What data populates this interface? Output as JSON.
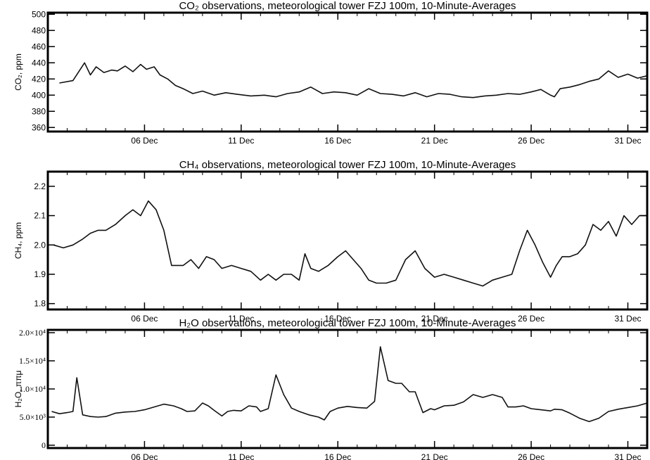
{
  "chart_data": [
    {
      "type": "line",
      "title": "CO₂ observations, meteorological tower FZJ 100m, 10-Minute-Averages",
      "ylabel": "CO₂, ppm",
      "ylim": [
        355,
        502
      ],
      "yticks": [
        "360",
        "380",
        "400",
        "420",
        "440",
        "460",
        "480",
        "500"
      ],
      "yticks_values": [
        360,
        380,
        400,
        420,
        440,
        460,
        480,
        500
      ],
      "xlim": [
        1,
        32
      ],
      "xticks": [
        "06 Dec",
        "11 Dec",
        "16 Dec",
        "21 Dec",
        "26 Dec",
        "31 Dec"
      ],
      "xticks_values": [
        6,
        11,
        16,
        21,
        26,
        31
      ],
      "series": [
        {
          "x": [
            1.6,
            2.3,
            2.9,
            3.2,
            3.5,
            3.9,
            4.3,
            4.6,
            5.0,
            5.4,
            5.8,
            6.1,
            6.5,
            6.8,
            7.2,
            7.6,
            8.0,
            8.5,
            9.0,
            9.6,
            10.2,
            10.8,
            11.5,
            12.2,
            12.8,
            13.4,
            14.0,
            14.6,
            15.2,
            15.8,
            16.4,
            17.0,
            17.6,
            18.2,
            18.8,
            19.4,
            20.0,
            20.6,
            21.2,
            21.8,
            22.4,
            23.0,
            23.6,
            24.2,
            24.8,
            25.4,
            26.0,
            26.5,
            27.0,
            27.2,
            27.5,
            28.0,
            28.5,
            29.0,
            29.5,
            30.0,
            30.5,
            31.0,
            31.5,
            32.0
          ],
          "y": [
            415,
            418,
            440,
            425,
            435,
            428,
            431,
            430,
            436,
            429,
            438,
            432,
            435,
            425,
            420,
            412,
            408,
            402,
            405,
            400,
            403,
            401,
            399,
            400,
            398,
            402,
            404,
            410,
            402,
            404,
            403,
            400,
            408,
            402,
            401,
            399,
            403,
            398,
            402,
            401,
            398,
            397,
            399,
            400,
            402,
            401,
            404,
            407,
            400,
            398,
            408,
            410,
            413,
            417,
            420,
            430,
            422,
            426,
            421,
            424
          ]
        }
      ]
    },
    {
      "type": "line",
      "title": "CH₄ observations, meteorological tower FZJ 100m, 10-Minute-Averages",
      "ylabel": "CH₄, ppm",
      "ylim": [
        1.78,
        2.25
      ],
      "yticks": [
        "1.8",
        "1.9",
        "2.0",
        "2.1",
        "2.2"
      ],
      "yticks_values": [
        1.8,
        1.9,
        2.0,
        2.1,
        2.2
      ],
      "xlim": [
        1,
        32
      ],
      "xticks": [
        "06 Dec",
        "11 Dec",
        "16 Dec",
        "21 Dec",
        "26 Dec",
        "31 Dec"
      ],
      "xticks_values": [
        6,
        11,
        16,
        21,
        26,
        31
      ],
      "series": [
        {
          "x": [
            1.3,
            1.8,
            2.3,
            2.8,
            3.2,
            3.6,
            4.0,
            4.5,
            5.0,
            5.4,
            5.8,
            6.2,
            6.6,
            7.0,
            7.4,
            7.7,
            8.0,
            8.4,
            8.8,
            9.2,
            9.6,
            10.0,
            10.5,
            11.0,
            11.5,
            12.0,
            12.4,
            12.8,
            13.2,
            13.6,
            14.0,
            14.3,
            14.6,
            15.0,
            15.5,
            16.0,
            16.4,
            16.8,
            17.2,
            17.6,
            18.0,
            18.5,
            19.0,
            19.5,
            20.0,
            20.5,
            21.0,
            21.5,
            22.0,
            22.5,
            23.0,
            23.5,
            24.0,
            24.5,
            25.0,
            25.4,
            25.8,
            26.2,
            26.6,
            27.0,
            27.3,
            27.6,
            28.0,
            28.4,
            28.8,
            29.2,
            29.6,
            30.0,
            30.4,
            30.8,
            31.2,
            31.6,
            32.0
          ],
          "y": [
            2.0,
            1.99,
            2.0,
            2.02,
            2.04,
            2.05,
            2.05,
            2.07,
            2.1,
            2.12,
            2.1,
            2.15,
            2.12,
            2.05,
            1.93,
            1.93,
            1.93,
            1.95,
            1.92,
            1.96,
            1.95,
            1.92,
            1.93,
            1.92,
            1.91,
            1.88,
            1.9,
            1.88,
            1.9,
            1.9,
            1.88,
            1.97,
            1.92,
            1.91,
            1.93,
            1.96,
            1.98,
            1.95,
            1.92,
            1.88,
            1.87,
            1.87,
            1.88,
            1.95,
            1.98,
            1.92,
            1.89,
            1.9,
            1.89,
            1.88,
            1.87,
            1.86,
            1.88,
            1.89,
            1.9,
            1.98,
            2.05,
            2.0,
            1.94,
            1.89,
            1.93,
            1.96,
            1.96,
            1.97,
            2.0,
            2.07,
            2.05,
            2.08,
            2.03,
            2.1,
            2.07,
            2.1,
            2.1
          ]
        }
      ]
    },
    {
      "type": "line",
      "title": "H₂O observations, meteorological tower FZJ 100m, 10-Minute-Averages",
      "ylabel": "H₂O, ππμ",
      "ylim": [
        -500,
        20500
      ],
      "yticks": [
        "0",
        "5.0×10³",
        "1.0×10⁴",
        "1.5×10⁴",
        "2.0×10⁴"
      ],
      "yticks_values": [
        0,
        5000,
        10000,
        15000,
        20000
      ],
      "xlim": [
        1,
        32
      ],
      "xticks": [
        "06 Dec",
        "11 Dec",
        "16 Dec",
        "21 Dec",
        "26 Dec",
        "31 Dec"
      ],
      "xticks_values": [
        6,
        11,
        16,
        21,
        26,
        31
      ],
      "series": [
        {
          "x": [
            1.2,
            1.6,
            2.0,
            2.3,
            2.5,
            2.8,
            3.2,
            3.6,
            4.0,
            4.5,
            5.0,
            5.5,
            6.0,
            6.5,
            7.0,
            7.5,
            7.9,
            8.2,
            8.6,
            9.0,
            9.3,
            9.6,
            10.0,
            10.3,
            10.6,
            11.0,
            11.4,
            11.8,
            12.0,
            12.4,
            12.8,
            13.2,
            13.6,
            14.0,
            14.5,
            15.0,
            15.3,
            15.6,
            16.0,
            16.5,
            17.0,
            17.5,
            17.9,
            18.2,
            18.6,
            19.0,
            19.3,
            19.7,
            20.0,
            20.4,
            20.8,
            21.0,
            21.5,
            22.0,
            22.5,
            23.0,
            23.5,
            24.0,
            24.5,
            24.8,
            25.2,
            25.6,
            26.0,
            26.5,
            27.0,
            27.2,
            27.6,
            28.0,
            28.5,
            29.0,
            29.5,
            30.0,
            30.5,
            31.0,
            31.5,
            32.0
          ],
          "y": [
            6000,
            5600,
            5800,
            6000,
            12000,
            5400,
            5100,
            5000,
            5100,
            5700,
            5900,
            6000,
            6300,
            6800,
            7300,
            7000,
            6500,
            6000,
            6100,
            7500,
            7000,
            6200,
            5200,
            6000,
            6200,
            6100,
            7000,
            6800,
            6000,
            6500,
            12500,
            9000,
            6600,
            6000,
            5400,
            5000,
            4500,
            6000,
            6600,
            6900,
            6700,
            6600,
            7800,
            17500,
            11500,
            11000,
            11000,
            9500,
            9500,
            5800,
            6500,
            6300,
            7000,
            7100,
            7700,
            9000,
            8500,
            9000,
            8500,
            6800,
            6800,
            7000,
            6500,
            6300,
            6100,
            6400,
            6300,
            5700,
            4800,
            4200,
            4800,
            6000,
            6400,
            6700,
            7000,
            7500
          ]
        }
      ]
    }
  ]
}
